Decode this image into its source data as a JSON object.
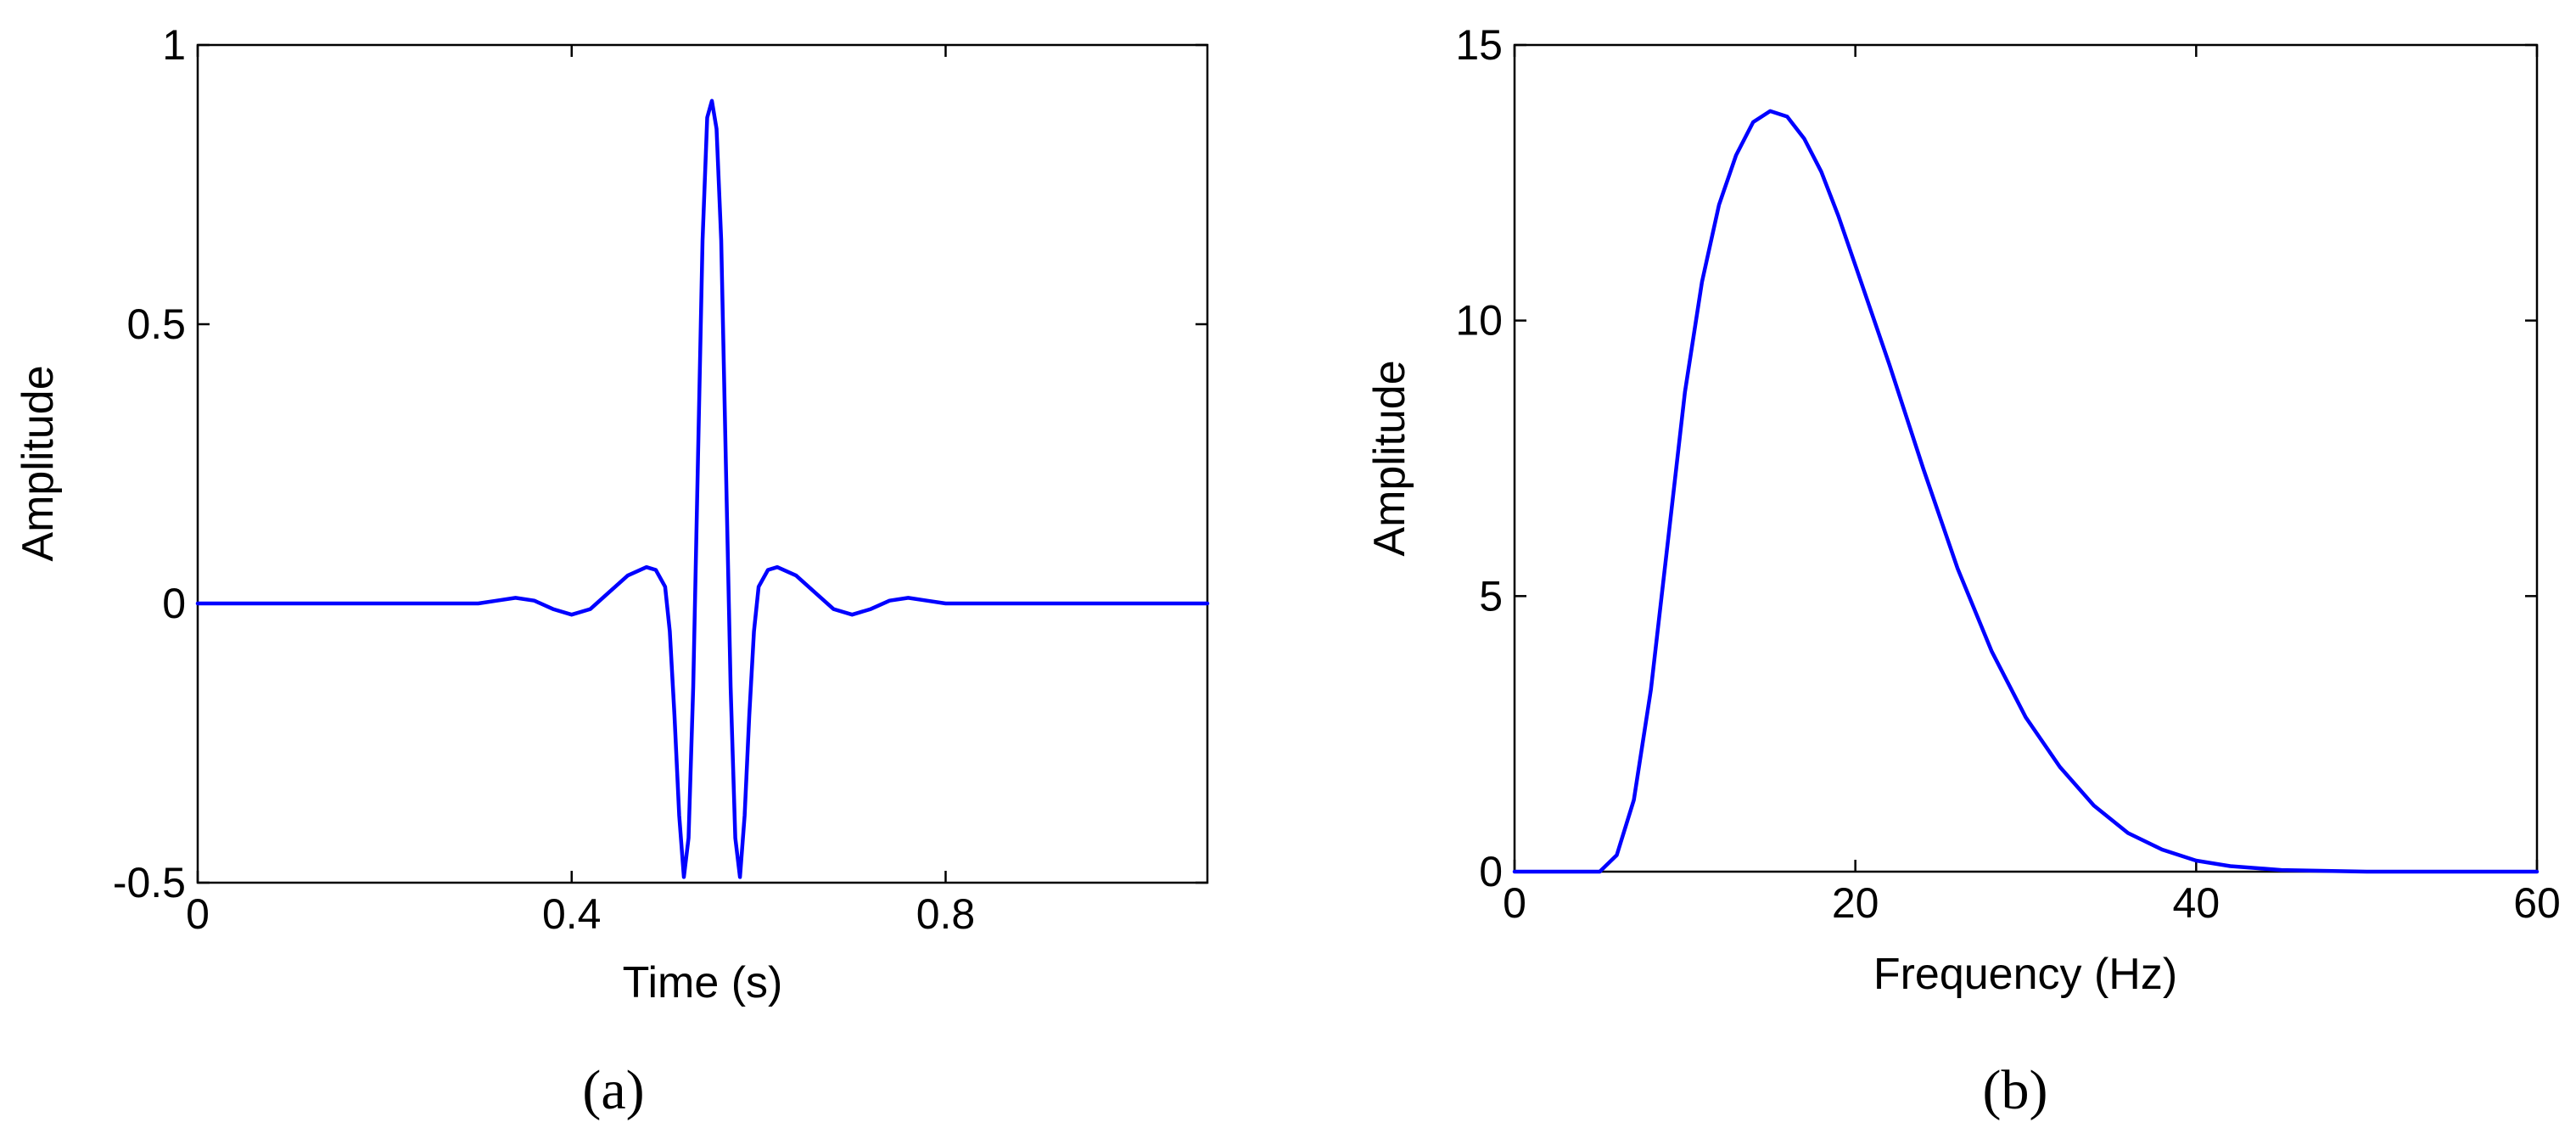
{
  "colors": {
    "series": "#0000ff",
    "axes": "#000000",
    "background": "#ffffff"
  },
  "chart_data": [
    {
      "type": "line",
      "panel_label": "(a)",
      "xlabel": "Time (s)",
      "ylabel": "Amplitude",
      "xlim": [
        0,
        1.08
      ],
      "ylim": [
        -0.5,
        1
      ],
      "xticks": [
        0,
        0.4,
        0.8
      ],
      "xtick_labels": [
        "0",
        "0.4",
        "0.8"
      ],
      "yticks": [
        -0.5,
        0,
        0.5,
        1
      ],
      "ytick_labels": [
        "-0.5",
        "0",
        "0.5",
        "1"
      ],
      "grid": false,
      "series": [
        {
          "x": [
            0,
            0.1,
            0.2,
            0.3,
            0.32,
            0.34,
            0.36,
            0.38,
            0.4,
            0.42,
            0.44,
            0.46,
            0.48,
            0.49,
            0.5,
            0.505,
            0.51,
            0.515,
            0.52,
            0.525,
            0.53,
            0.535,
            0.54,
            0.545,
            0.55,
            0.555,
            0.56,
            0.565,
            0.57,
            0.575,
            0.58,
            0.585,
            0.59,
            0.595,
            0.6,
            0.61,
            0.62,
            0.64,
            0.66,
            0.68,
            0.7,
            0.72,
            0.74,
            0.76,
            0.78,
            0.8,
            0.9,
            1.0,
            1.08
          ],
          "y": [
            0,
            0,
            0,
            0,
            0.005,
            0.01,
            0.005,
            -0.01,
            -0.02,
            -0.01,
            0.02,
            0.05,
            0.065,
            0.06,
            0.03,
            -0.05,
            -0.2,
            -0.38,
            -0.49,
            -0.42,
            -0.15,
            0.25,
            0.65,
            0.87,
            0.9,
            0.85,
            0.65,
            0.25,
            -0.15,
            -0.42,
            -0.49,
            -0.38,
            -0.2,
            -0.05,
            0.03,
            0.06,
            0.065,
            0.05,
            0.02,
            -0.01,
            -0.02,
            -0.01,
            0.005,
            0.01,
            0.005,
            0,
            0,
            0,
            0
          ]
        }
      ]
    },
    {
      "type": "line",
      "panel_label": "(b)",
      "xlabel": "Frequency (Hz)",
      "ylabel": "Amplitude",
      "xlim": [
        0,
        60
      ],
      "ylim": [
        0,
        15
      ],
      "xticks": [
        0,
        20,
        40,
        60
      ],
      "xtick_labels": [
        "0",
        "20",
        "40",
        "60"
      ],
      "yticks": [
        0,
        5,
        10,
        15
      ],
      "ytick_labels": [
        "0",
        "5",
        "10",
        "15"
      ],
      "grid": false,
      "series": [
        {
          "x": [
            0,
            3,
            5,
            6,
            7,
            8,
            9,
            10,
            11,
            12,
            13,
            14,
            15,
            16,
            17,
            18,
            19,
            20,
            22,
            24,
            26,
            28,
            30,
            32,
            34,
            36,
            38,
            40,
            42,
            45,
            50,
            55,
            60
          ],
          "y": [
            0,
            0,
            0,
            0.3,
            1.3,
            3.3,
            6.0,
            8.7,
            10.7,
            12.1,
            13.0,
            13.6,
            13.8,
            13.7,
            13.3,
            12.7,
            11.9,
            11.0,
            9.2,
            7.3,
            5.5,
            4.0,
            2.8,
            1.9,
            1.2,
            0.7,
            0.4,
            0.2,
            0.1,
            0.03,
            0,
            0,
            0
          ]
        }
      ]
    }
  ]
}
